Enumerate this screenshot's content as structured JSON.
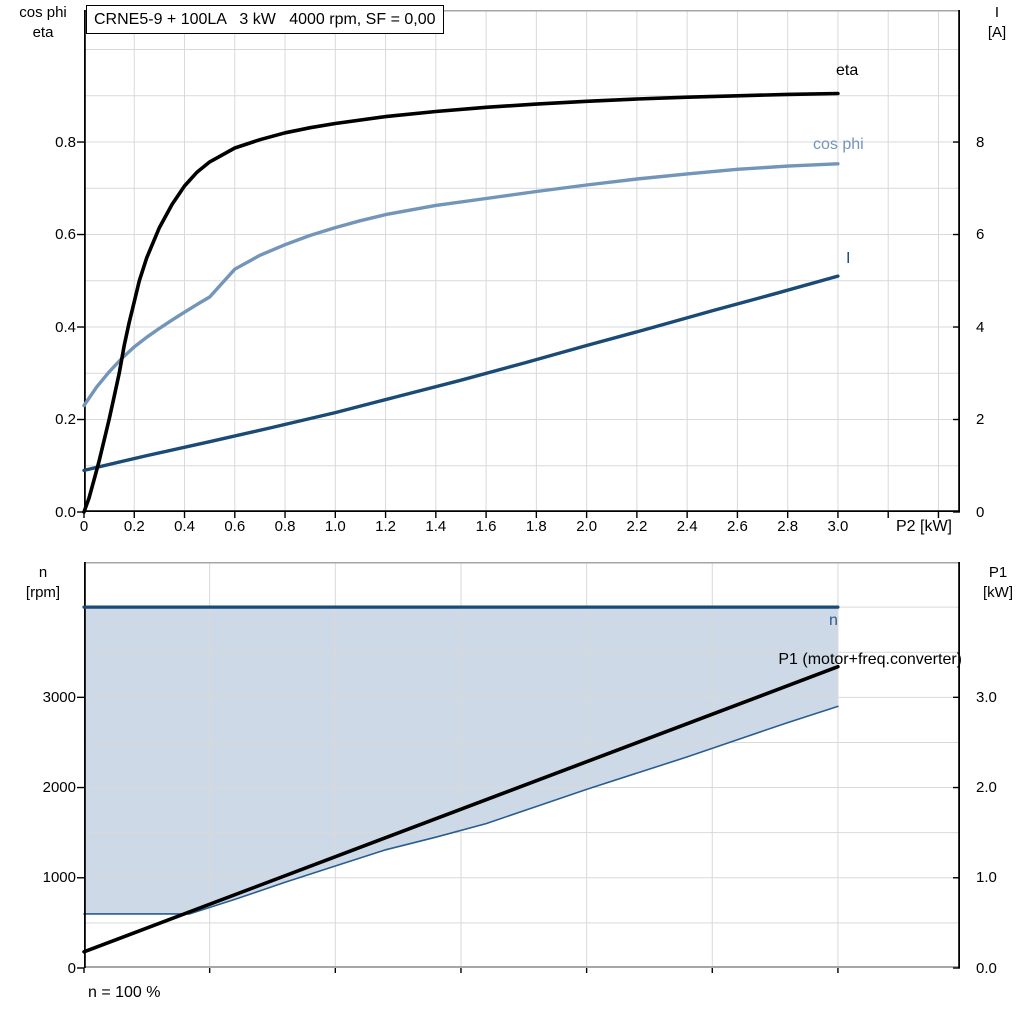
{
  "colors": {
    "grid": "#d9d9d9",
    "border_gray": "#a6a6a6",
    "axis_black": "#000000",
    "eta_curve": "#000000",
    "cos_phi_curve": "#7295b9",
    "current_curve": "#1a4a76",
    "speed_curve": "#1a4a76",
    "p1_curve": "#000000",
    "area_fill": "#cdd9e6",
    "area_edge": "#2a5d8f"
  },
  "chart_data": [
    {
      "type": "line",
      "title": "CRNE5-9 + 100LA   3 kW   4000 rpm, SF = 0,00",
      "xlabel": "P2 [kW]",
      "x_axis": {
        "min": 0,
        "max": 3.4857,
        "grid_step": 0.2,
        "tick_labels": [
          "0",
          "0.2",
          "0.4",
          "0.6",
          "0.8",
          "1.0",
          "1.2",
          "1.4",
          "1.6",
          "1.8",
          "2.0",
          "2.2",
          "2.4",
          "2.6",
          "2.8",
          "3.0"
        ]
      },
      "y_left": {
        "label_lines": [
          "cos phi",
          "eta"
        ],
        "min": 0,
        "max": 1.0855,
        "grid_step": 0.1,
        "tick_values": [
          0,
          0.2,
          0.4,
          0.6,
          0.8
        ],
        "tick_labels": [
          "0.0",
          "0.2",
          "0.4",
          "0.6",
          "0.8"
        ]
      },
      "y_right": {
        "label_lines": [
          "I",
          "[A]"
        ],
        "min": 0,
        "max": 10.855,
        "tick_values": [
          0,
          2,
          4,
          6,
          8
        ],
        "tick_labels": [
          "0",
          "2",
          "4",
          "6",
          "8"
        ]
      },
      "series": [
        {
          "name": "I",
          "axis": "right",
          "color": "#1a4a76",
          "width": 3.4,
          "points": [
            [
              0,
              0.9
            ],
            [
              0.25,
              1.22
            ],
            [
              0.5,
              1.52
            ],
            [
              0.75,
              1.83
            ],
            [
              1.0,
              2.15
            ],
            [
              1.25,
              2.5
            ],
            [
              1.5,
              2.85
            ],
            [
              1.75,
              3.22
            ],
            [
              2.0,
              3.6
            ],
            [
              2.25,
              3.97
            ],
            [
              2.5,
              4.35
            ],
            [
              2.75,
              4.72
            ],
            [
              3.0,
              5.1
            ]
          ]
        },
        {
          "name": "cos phi",
          "axis": "left",
          "color": "#7295b9",
          "width": 3.4,
          "points": [
            [
              0,
              0.23
            ],
            [
              0.05,
              0.27
            ],
            [
              0.1,
              0.303
            ],
            [
              0.15,
              0.332
            ],
            [
              0.2,
              0.357
            ],
            [
              0.25,
              0.378
            ],
            [
              0.3,
              0.397
            ],
            [
              0.35,
              0.415
            ],
            [
              0.4,
              0.432
            ],
            [
              0.45,
              0.449
            ],
            [
              0.5,
              0.465
            ],
            [
              0.55,
              0.495
            ],
            [
              0.6,
              0.525
            ],
            [
              0.7,
              0.555
            ],
            [
              0.8,
              0.578
            ],
            [
              0.9,
              0.598
            ],
            [
              1.0,
              0.615
            ],
            [
              1.1,
              0.63
            ],
            [
              1.2,
              0.643
            ],
            [
              1.4,
              0.663
            ],
            [
              1.6,
              0.678
            ],
            [
              1.8,
              0.693
            ],
            [
              2.0,
              0.707
            ],
            [
              2.2,
              0.72
            ],
            [
              2.4,
              0.731
            ],
            [
              2.6,
              0.741
            ],
            [
              2.8,
              0.748
            ],
            [
              3.0,
              0.753
            ]
          ]
        },
        {
          "name": "eta",
          "axis": "left",
          "color": "#000000",
          "width": 3.6,
          "points": [
            [
              0,
              0
            ],
            [
              0.02,
              0.03
            ],
            [
              0.04,
              0.07
            ],
            [
              0.06,
              0.11
            ],
            [
              0.08,
              0.155
            ],
            [
              0.1,
              0.2
            ],
            [
              0.12,
              0.25
            ],
            [
              0.14,
              0.3
            ],
            [
              0.16,
              0.36
            ],
            [
              0.18,
              0.41
            ],
            [
              0.2,
              0.455
            ],
            [
              0.22,
              0.5
            ],
            [
              0.25,
              0.55
            ],
            [
              0.3,
              0.615
            ],
            [
              0.35,
              0.665
            ],
            [
              0.4,
              0.705
            ],
            [
              0.45,
              0.735
            ],
            [
              0.5,
              0.757
            ],
            [
              0.6,
              0.787
            ],
            [
              0.7,
              0.805
            ],
            [
              0.8,
              0.82
            ],
            [
              0.9,
              0.831
            ],
            [
              1.0,
              0.84
            ],
            [
              1.2,
              0.855
            ],
            [
              1.4,
              0.866
            ],
            [
              1.6,
              0.875
            ],
            [
              1.8,
              0.882
            ],
            [
              2.0,
              0.888
            ],
            [
              2.2,
              0.893
            ],
            [
              2.4,
              0.897
            ],
            [
              2.6,
              0.9
            ],
            [
              2.8,
              0.903
            ],
            [
              3.0,
              0.905
            ]
          ]
        }
      ]
    },
    {
      "type": "line_area",
      "annotation": "n = 100 %",
      "x_axis": {
        "min": 0,
        "max": 3.4857,
        "grid_step": 0.5
      },
      "y_left": {
        "label_lines": [
          "n",
          "[rpm]"
        ],
        "min": 0,
        "max": 4500,
        "grid_step": 500,
        "tick_values": [
          0,
          1000,
          2000,
          3000
        ],
        "tick_labels": [
          "0",
          "1000",
          "2000",
          "3000"
        ]
      },
      "y_right": {
        "label_lines": [
          "P1",
          "[kW]"
        ],
        "min": 0,
        "max": 4.5,
        "grid_step": 0.5,
        "tick_values": [
          0,
          1,
          2,
          3
        ],
        "tick_labels": [
          "0.0",
          "1.0",
          "2.0",
          "3.0"
        ]
      },
      "area": {
        "name": "speed-operating-range",
        "fill": "#cdd9e6",
        "edge_color": "#2a5d8f",
        "top_n": 4000,
        "bottom_points": [
          [
            0,
            600
          ],
          [
            0.42,
            600
          ],
          [
            0.6,
            760
          ],
          [
            0.8,
            950
          ],
          [
            1.0,
            1130
          ],
          [
            1.2,
            1310
          ],
          [
            1.4,
            1450
          ],
          [
            1.6,
            1600
          ],
          [
            1.8,
            1790
          ],
          [
            2.0,
            1980
          ],
          [
            2.2,
            2160
          ],
          [
            2.4,
            2340
          ],
          [
            2.6,
            2530
          ],
          [
            2.8,
            2720
          ],
          [
            3.0,
            2900
          ]
        ]
      },
      "series": [
        {
          "name": "n",
          "axis": "left",
          "color": "#1a4a76",
          "width": 3.2,
          "points": [
            [
              0,
              4000
            ],
            [
              3.0,
              4000
            ]
          ]
        },
        {
          "name": "P1 (motor+freq.converter)",
          "axis": "right",
          "color": "#000000",
          "width": 3.6,
          "points": [
            [
              0,
              0.18
            ],
            [
              3.0,
              3.34
            ]
          ]
        }
      ]
    }
  ]
}
